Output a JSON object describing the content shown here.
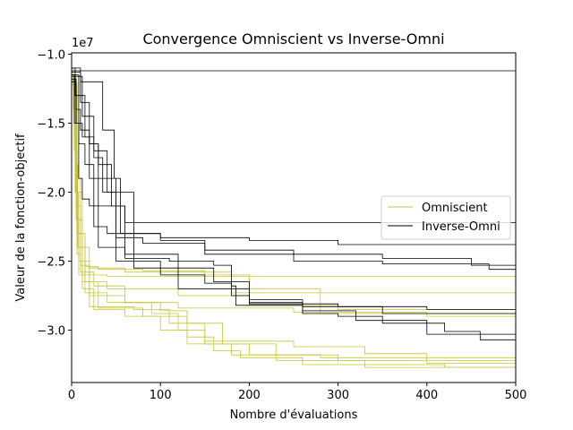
{
  "chart_data": {
    "type": "line",
    "title": "Convergence Omniscient vs Inverse-Omni",
    "xlabel": "Nombre d'évaluations",
    "ylabel": "Valeur de la fonction-objectif",
    "y_offset_label": "1e7",
    "xlim": [
      0,
      500
    ],
    "ylim": [
      -33800000,
      -9900000
    ],
    "x_ticks": [
      0,
      100,
      200,
      300,
      400,
      500
    ],
    "x_tick_labels": [
      "0",
      "100",
      "200",
      "300",
      "400",
      "500"
    ],
    "y_ticks": [
      -10000000,
      -15000000,
      -20000000,
      -25000000,
      -30000000
    ],
    "y_tick_labels": [
      "−1.0",
      "−1.5",
      "−2.0",
      "−2.5",
      "−3.0"
    ],
    "grid": false,
    "legend_position": "center-right",
    "legend": [
      {
        "label": "Omniscient",
        "color": "#c8c430"
      },
      {
        "label": "Inverse-Omni",
        "color": "#000000"
      }
    ],
    "series": [
      {
        "group": "Omniscient",
        "color": "#c8c430",
        "points": [
          [
            0,
            -11000000
          ],
          [
            2,
            -14000000
          ],
          [
            4,
            -20000000
          ],
          [
            6,
            -24500000
          ],
          [
            10,
            -25300000
          ],
          [
            20,
            -26000000
          ],
          [
            40,
            -26100000
          ],
          [
            500,
            -26100000
          ]
        ]
      },
      {
        "group": "Omniscient",
        "color": "#c8c430",
        "points": [
          [
            0,
            -11500000
          ],
          [
            3,
            -16000000
          ],
          [
            5,
            -22000000
          ],
          [
            8,
            -25000000
          ],
          [
            20,
            -25500000
          ],
          [
            60,
            -25800000
          ],
          [
            180,
            -27300000
          ],
          [
            500,
            -27300000
          ]
        ]
      },
      {
        "group": "Omniscient",
        "color": "#c8c430",
        "points": [
          [
            0,
            -12000000
          ],
          [
            4,
            -18000000
          ],
          [
            7,
            -24000000
          ],
          [
            15,
            -26500000
          ],
          [
            40,
            -27000000
          ],
          [
            120,
            -27500000
          ],
          [
            200,
            -28200000
          ],
          [
            300,
            -28500000
          ],
          [
            500,
            -28500000
          ]
        ]
      },
      {
        "group": "Omniscient",
        "color": "#c8c430",
        "points": [
          [
            0,
            -11800000
          ],
          [
            3,
            -17000000
          ],
          [
            6,
            -23000000
          ],
          [
            15,
            -25400000
          ],
          [
            30,
            -25600000
          ],
          [
            80,
            -25700000
          ],
          [
            150,
            -26000000
          ],
          [
            200,
            -27000000
          ],
          [
            280,
            -28800000
          ],
          [
            400,
            -29000000
          ],
          [
            500,
            -29000000
          ]
        ]
      },
      {
        "group": "Omniscient",
        "color": "#c8c430",
        "points": [
          [
            0,
            -12200000
          ],
          [
            5,
            -19000000
          ],
          [
            10,
            -24000000
          ],
          [
            20,
            -27500000
          ],
          [
            60,
            -28000000
          ],
          [
            120,
            -28400000
          ],
          [
            250,
            -28700000
          ],
          [
            400,
            -28800000
          ],
          [
            500,
            -28900000
          ]
        ]
      },
      {
        "group": "Omniscient",
        "color": "#c8c430",
        "points": [
          [
            0,
            -11300000
          ],
          [
            4,
            -20000000
          ],
          [
            8,
            -26000000
          ],
          [
            20,
            -28300000
          ],
          [
            70,
            -28500000
          ],
          [
            110,
            -29500000
          ],
          [
            150,
            -30800000
          ],
          [
            250,
            -31200000
          ],
          [
            330,
            -31700000
          ],
          [
            400,
            -32000000
          ],
          [
            500,
            -32000000
          ]
        ]
      },
      {
        "group": "Omniscient",
        "color": "#c8c430",
        "points": [
          [
            0,
            -12500000
          ],
          [
            6,
            -22000000
          ],
          [
            12,
            -27000000
          ],
          [
            25,
            -28500000
          ],
          [
            60,
            -29000000
          ],
          [
            100,
            -30000000
          ],
          [
            130,
            -31000000
          ],
          [
            180,
            -31800000
          ],
          [
            230,
            -32200000
          ],
          [
            330,
            -32500000
          ],
          [
            420,
            -32700000
          ],
          [
            500,
            -32700000
          ]
        ]
      },
      {
        "group": "Omniscient",
        "color": "#c8c430",
        "points": [
          [
            0,
            -11600000
          ],
          [
            5,
            -21000000
          ],
          [
            10,
            -25800000
          ],
          [
            25,
            -26800000
          ],
          [
            60,
            -28000000
          ],
          [
            90,
            -28800000
          ],
          [
            120,
            -30000000
          ],
          [
            150,
            -31000000
          ],
          [
            200,
            -31800000
          ],
          [
            280,
            -32000000
          ],
          [
            400,
            -32400000
          ],
          [
            500,
            -32500000
          ]
        ]
      },
      {
        "group": "Omniscient",
        "color": "#c8c430",
        "points": [
          [
            0,
            -11900000
          ],
          [
            5,
            -20000000
          ],
          [
            12,
            -26500000
          ],
          [
            30,
            -28400000
          ],
          [
            80,
            -29000000
          ],
          [
            130,
            -30500000
          ],
          [
            160,
            -31500000
          ],
          [
            190,
            -32000000
          ],
          [
            260,
            -32500000
          ],
          [
            330,
            -32700000
          ],
          [
            500,
            -32800000
          ]
        ]
      },
      {
        "group": "Omniscient",
        "color": "#c8c430",
        "points": [
          [
            0,
            -12100000
          ],
          [
            6,
            -23000000
          ],
          [
            15,
            -27300000
          ],
          [
            40,
            -28000000
          ],
          [
            100,
            -28600000
          ],
          [
            130,
            -29500000
          ],
          [
            170,
            -31000000
          ],
          [
            230,
            -31800000
          ],
          [
            300,
            -32200000
          ],
          [
            500,
            -32300000
          ]
        ]
      },
      {
        "group": "Inverse-Omni",
        "color": "#000000",
        "points": [
          [
            0,
            -11200000
          ],
          [
            500,
            -13100000
          ]
        ]
      },
      {
        "group": "Inverse-Omni",
        "color": "#000000",
        "points": [
          [
            0,
            -11500000
          ],
          [
            3,
            -15000000
          ],
          [
            8,
            -19000000
          ],
          [
            12,
            -20500000
          ],
          [
            20,
            -21000000
          ],
          [
            60,
            -22200000
          ],
          [
            500,
            -22200000
          ]
        ]
      },
      {
        "group": "Inverse-Omni",
        "color": "#000000",
        "points": [
          [
            0,
            -11000000
          ],
          [
            4,
            -13000000
          ],
          [
            8,
            -16500000
          ],
          [
            15,
            -18000000
          ],
          [
            25,
            -22500000
          ],
          [
            40,
            -23000000
          ],
          [
            100,
            -23300000
          ],
          [
            200,
            -23500000
          ],
          [
            300,
            -23800000
          ],
          [
            500,
            -23800000
          ]
        ]
      },
      {
        "group": "Inverse-Omni",
        "color": "#000000",
        "points": [
          [
            0,
            -11800000
          ],
          [
            5,
            -14000000
          ],
          [
            10,
            -15500000
          ],
          [
            20,
            -16500000
          ],
          [
            30,
            -19000000
          ],
          [
            50,
            -23300000
          ],
          [
            80,
            -23700000
          ],
          [
            150,
            -24200000
          ],
          [
            250,
            -24500000
          ],
          [
            350,
            -24800000
          ],
          [
            450,
            -25300000
          ],
          [
            500,
            -25300000
          ]
        ]
      },
      {
        "group": "Inverse-Omni",
        "color": "#000000",
        "points": [
          [
            0,
            -11000000
          ],
          [
            10,
            -12000000
          ],
          [
            30,
            -12000000
          ],
          [
            35,
            -15500000
          ],
          [
            48,
            -19000000
          ],
          [
            55,
            -23000000
          ],
          [
            100,
            -23500000
          ],
          [
            150,
            -24500000
          ],
          [
            250,
            -25000000
          ],
          [
            350,
            -25200000
          ],
          [
            470,
            -25600000
          ],
          [
            500,
            -25600000
          ]
        ]
      },
      {
        "group": "Inverse-Omni",
        "color": "#000000",
        "points": [
          [
            0,
            -12000000
          ],
          [
            5,
            -15000000
          ],
          [
            12,
            -16000000
          ],
          [
            20,
            -19000000
          ],
          [
            30,
            -24000000
          ],
          [
            60,
            -24800000
          ],
          [
            110,
            -25000000
          ],
          [
            160,
            -25300000
          ],
          [
            180,
            -27000000
          ],
          [
            200,
            -28100000
          ],
          [
            300,
            -28300000
          ],
          [
            400,
            -28500000
          ],
          [
            500,
            -28500000
          ]
        ]
      },
      {
        "group": "Inverse-Omni",
        "color": "#000000",
        "points": [
          [
            0,
            -11500000
          ],
          [
            8,
            -13000000
          ],
          [
            15,
            -16000000
          ],
          [
            25,
            -17500000
          ],
          [
            35,
            -20000000
          ],
          [
            50,
            -25000000
          ],
          [
            100,
            -26000000
          ],
          [
            150,
            -26600000
          ],
          [
            180,
            -26800000
          ],
          [
            185,
            -28200000
          ],
          [
            260,
            -28300000
          ],
          [
            350,
            -28800000
          ],
          [
            500,
            -28800000
          ]
        ]
      },
      {
        "group": "Inverse-Omni",
        "color": "#000000",
        "points": [
          [
            0,
            -11300000
          ],
          [
            10,
            -13500000
          ],
          [
            20,
            -16500000
          ],
          [
            30,
            -18000000
          ],
          [
            45,
            -21000000
          ],
          [
            60,
            -24500000
          ],
          [
            120,
            -25500000
          ],
          [
            160,
            -26500000
          ],
          [
            200,
            -27800000
          ],
          [
            260,
            -28600000
          ],
          [
            320,
            -29300000
          ],
          [
            400,
            -30300000
          ],
          [
            500,
            -30300000
          ]
        ]
      },
      {
        "group": "Inverse-Omni",
        "color": "#000000",
        "points": [
          [
            0,
            -11600000
          ],
          [
            12,
            -14500000
          ],
          [
            25,
            -17000000
          ],
          [
            40,
            -20000000
          ],
          [
            70,
            -25500000
          ],
          [
            120,
            -27000000
          ],
          [
            180,
            -27500000
          ],
          [
            200,
            -28000000
          ],
          [
            260,
            -28800000
          ],
          [
            300,
            -29000000
          ],
          [
            350,
            -29500000
          ],
          [
            420,
            -30100000
          ],
          [
            460,
            -30700000
          ],
          [
            500,
            -30900000
          ]
        ]
      }
    ]
  }
}
